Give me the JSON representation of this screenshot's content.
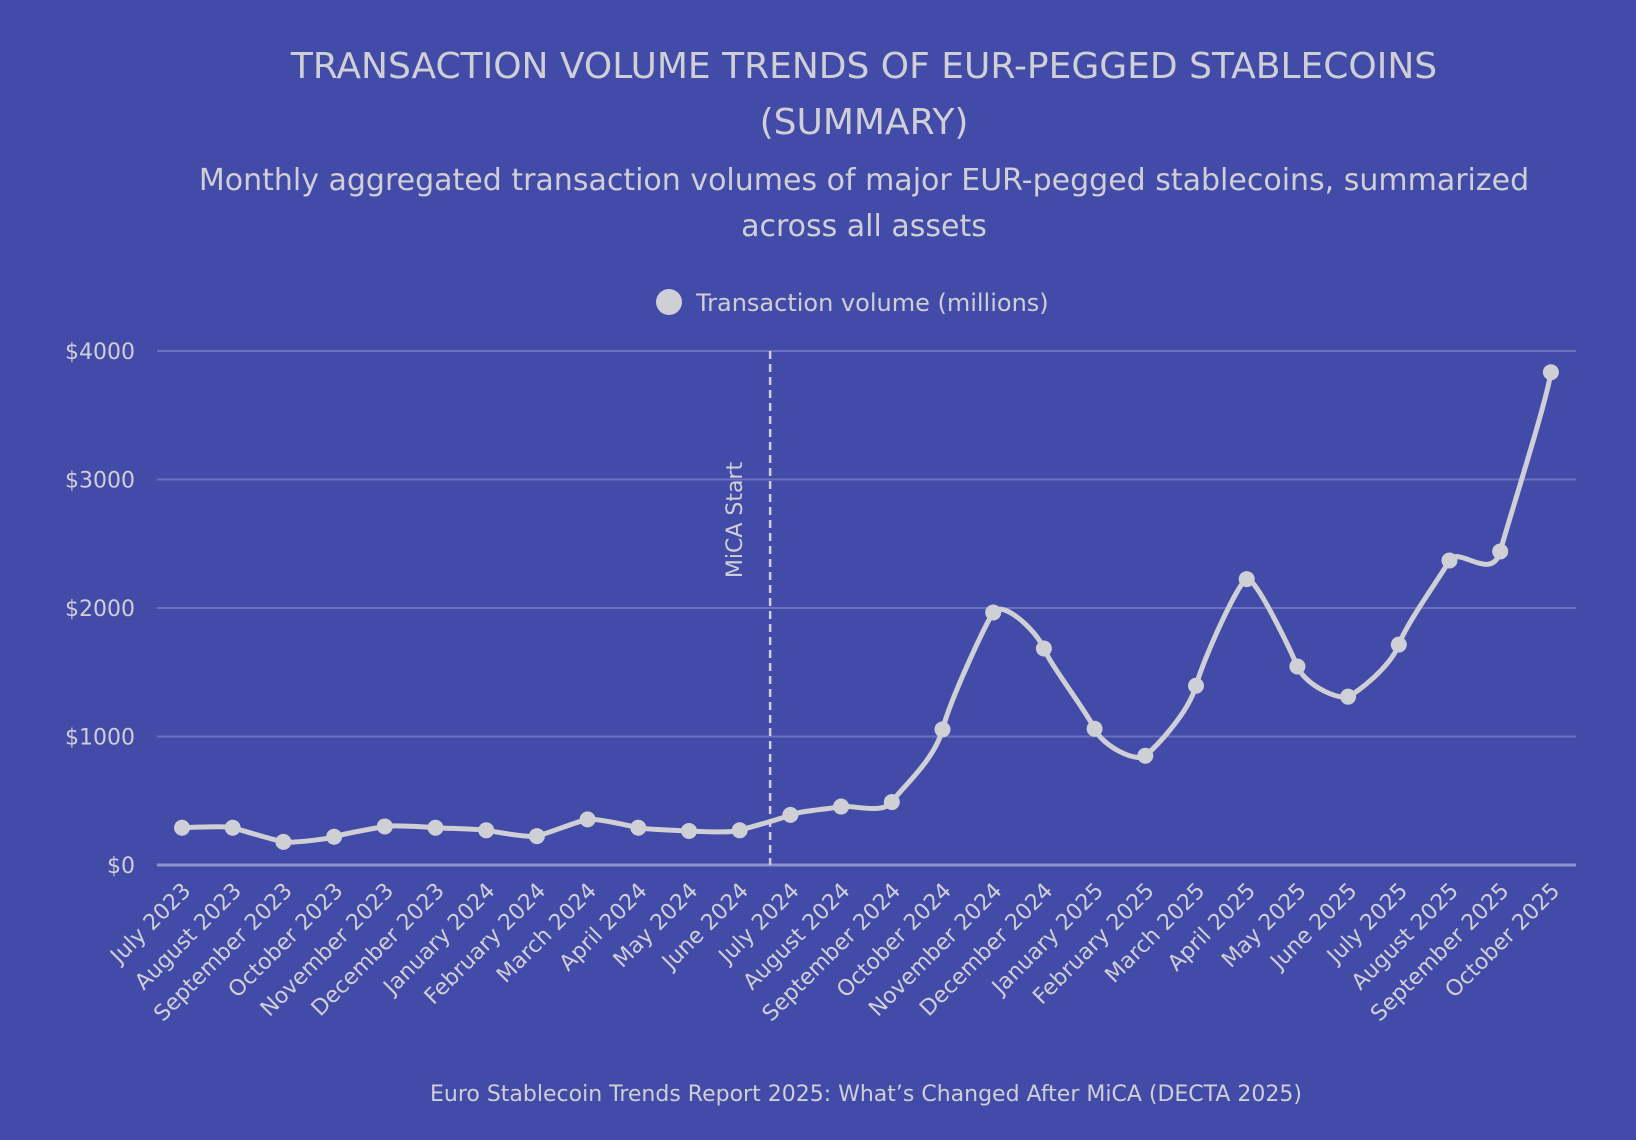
{
  "chart_data": {
    "type": "line",
    "title_lines": [
      "TRANSACTION VOLUME TRENDS OF EUR-PEGGED STABLECOINS",
      "(SUMMARY)"
    ],
    "subtitle_lines": [
      "Monthly aggregated transaction volumes of major EUR-pegged stablecoins, summarized",
      "across all assets"
    ],
    "xlabel": "",
    "ylabel": "",
    "categories": [
      "July 2023",
      "August 2023",
      "September 2023",
      "October 2023",
      "November 2023",
      "December 2023",
      "January 2024",
      "February 2024",
      "March 2024",
      "April 2024",
      "May 2024",
      "June 2024",
      "July 2024",
      "August 2024",
      "September 2024",
      "October 2024",
      "November 2024",
      "December 2024",
      "January 2025",
      "February 2025",
      "March 2025",
      "April 2025",
      "May 2025",
      "June 2025",
      "July 2025",
      "August 2025",
      "September 2025",
      "October 2025"
    ],
    "series": [
      {
        "name": "Transaction volume (millions)",
        "color": "#CFCFD6",
        "values": [
          290,
          290,
          180,
          220,
          300,
          290,
          270,
          225,
          355,
          290,
          265,
          270,
          390,
          455,
          490,
          1055,
          1965,
          1685,
          1060,
          850,
          1395,
          2225,
          1545,
          1310,
          1715,
          2370,
          2440,
          3835
        ]
      }
    ],
    "ylim": [
      0,
      4000
    ],
    "yticks": [
      0,
      1000,
      2000,
      3000,
      4000
    ],
    "ytick_labels": [
      "$0",
      "$1000",
      "$2000",
      "$3000",
      "$4000"
    ],
    "grid": true,
    "legend_position": "top-center",
    "annotations": [
      {
        "type": "vertical-dashed-line",
        "x_between": [
          "June 2024",
          "July 2024"
        ],
        "x_fraction": 0.6,
        "label": "MiCA Start"
      }
    ],
    "source": "Euro Stablecoin Trends Report 2025: What’s Changed After MiCA (DECTA 2025)"
  },
  "colors": {
    "background": "#434BA8",
    "text": "#CFCFD6",
    "grid": "#6A72C0"
  }
}
